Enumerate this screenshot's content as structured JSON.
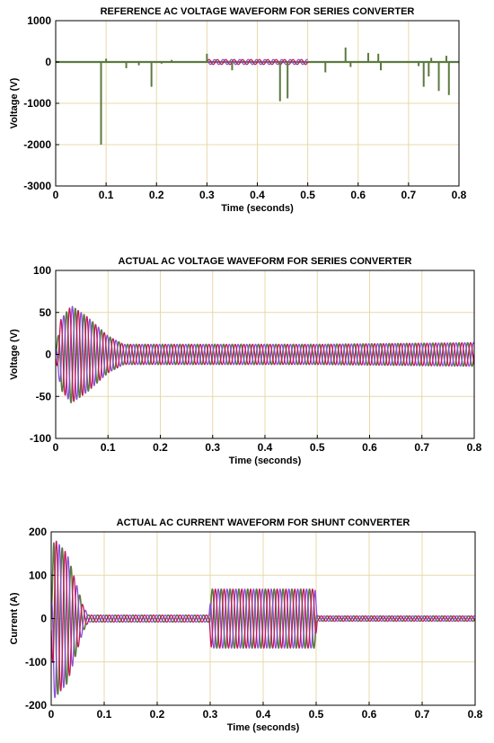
{
  "colors": {
    "grid": "#e8d8a8",
    "series_a": "#5c7a40",
    "series_b": "#c2185b",
    "series_c": "#8a4fd8"
  },
  "chart_data": [
    {
      "type": "line",
      "title": "REFERENCE AC VOLTAGE WAVEFORM FOR SERIES CONVERTER",
      "xlabel": "Time (seconds)",
      "ylabel": "Voltage (V)",
      "xlim": [
        0,
        0.8
      ],
      "ylim": [
        -3000,
        1000
      ],
      "xticks": [
        "0",
        "0.1",
        "0.2",
        "0.3",
        "0.4",
        "0.5",
        "0.6",
        "0.7",
        "0.8"
      ],
      "yticks": [
        "1000",
        "0",
        "-1000",
        "-2000",
        "-3000"
      ],
      "grid": true,
      "baseline": 0,
      "burst_window": [
        0.3,
        0.5
      ],
      "burst_amplitude": 60,
      "spikes": [
        {
          "x": 0.09,
          "y": -2000
        },
        {
          "x": 0.1,
          "y": 80
        },
        {
          "x": 0.14,
          "y": -150
        },
        {
          "x": 0.165,
          "y": -80
        },
        {
          "x": 0.19,
          "y": -600
        },
        {
          "x": 0.21,
          "y": -40
        },
        {
          "x": 0.23,
          "y": 50
        },
        {
          "x": 0.3,
          "y": 200
        },
        {
          "x": 0.35,
          "y": -200
        },
        {
          "x": 0.445,
          "y": -950
        },
        {
          "x": 0.46,
          "y": -880
        },
        {
          "x": 0.535,
          "y": -250
        },
        {
          "x": 0.575,
          "y": 350
        },
        {
          "x": 0.585,
          "y": -120
        },
        {
          "x": 0.62,
          "y": 220
        },
        {
          "x": 0.64,
          "y": 200
        },
        {
          "x": 0.645,
          "y": -200
        },
        {
          "x": 0.72,
          "y": -100
        },
        {
          "x": 0.73,
          "y": -600
        },
        {
          "x": 0.74,
          "y": -350
        },
        {
          "x": 0.745,
          "y": 100
        },
        {
          "x": 0.76,
          "y": -700
        },
        {
          "x": 0.775,
          "y": 150
        },
        {
          "x": 0.78,
          "y": -800
        }
      ]
    },
    {
      "type": "line",
      "title": "ACTUAL AC VOLTAGE WAVEFORM FOR SERIES CONVERTER",
      "xlabel": "Time (seconds)",
      "ylabel": "Voltage (V)",
      "xlim": [
        0,
        0.8
      ],
      "ylim": [
        -100,
        100
      ],
      "xticks": [
        "0",
        "0.1",
        "0.2",
        "0.3",
        "0.4",
        "0.5",
        "0.6",
        "0.7",
        "0.8"
      ],
      "yticks": [
        "100",
        "50",
        "0",
        "-50",
        "-100"
      ],
      "grid": true,
      "frequency_hz": 60,
      "envelope": [
        {
          "x": 0,
          "amp": 5
        },
        {
          "x": 0.01,
          "amp": 42
        },
        {
          "x": 0.03,
          "amp": 58
        },
        {
          "x": 0.06,
          "amp": 45
        },
        {
          "x": 0.1,
          "amp": 22
        },
        {
          "x": 0.13,
          "amp": 12
        },
        {
          "x": 0.3,
          "amp": 12
        },
        {
          "x": 0.5,
          "amp": 12
        },
        {
          "x": 0.8,
          "amp": 14
        }
      ]
    },
    {
      "type": "line",
      "title": "ACTUAL AC CURRENT WAVEFORM FOR SHUNT CONVERTER",
      "xlabel": "Time (seconds)",
      "ylabel": "Current (A)",
      "xlim": [
        0,
        0.8
      ],
      "ylim": [
        -200,
        200
      ],
      "xticks": [
        "0",
        "0.1",
        "0.2",
        "0.3",
        "0.4",
        "0.5",
        "0.6",
        "0.7",
        "0.8"
      ],
      "yticks": [
        "200",
        "100",
        "0",
        "-100",
        "-200"
      ],
      "grid": true,
      "frequency_hz": 60,
      "envelope": [
        {
          "x": 0,
          "amp": 30
        },
        {
          "x": 0.005,
          "amp": 185
        },
        {
          "x": 0.03,
          "amp": 150
        },
        {
          "x": 0.06,
          "amp": 30
        },
        {
          "x": 0.07,
          "amp": 8
        },
        {
          "x": 0.298,
          "amp": 8
        },
        {
          "x": 0.302,
          "amp": 68
        },
        {
          "x": 0.498,
          "amp": 68
        },
        {
          "x": 0.502,
          "amp": 6
        },
        {
          "x": 0.8,
          "amp": 6
        }
      ]
    }
  ]
}
